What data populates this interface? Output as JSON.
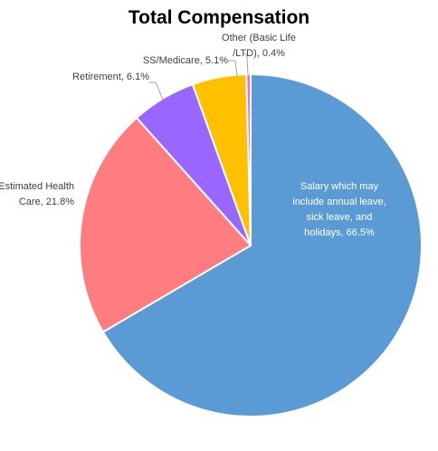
{
  "chart_data": {
    "type": "pie",
    "title": "Total Compensation",
    "slices": [
      {
        "label": "Salary which may include annual leave, sick leave, and holidays, 66.5%",
        "value": 66.5,
        "color": "#5B9BD5",
        "label_color": "#ffffff"
      },
      {
        "label": "Estimated Health Care, 21.8%",
        "value": 21.8,
        "color": "#FF7C80",
        "label_color": "#404040"
      },
      {
        "label": "Retirement, 6.1%",
        "value": 6.1,
        "color": "#9966FF",
        "label_color": "#404040"
      },
      {
        "label": "SS/Medicare, 5.1%",
        "value": 5.1,
        "color": "#FFC000",
        "label_color": "#404040"
      },
      {
        "label": "Other (Basic Life /LTD), 0.4%",
        "value": 0.4,
        "color": "#FF66CC",
        "label_color": "#404040"
      }
    ],
    "start": "12 o'clock",
    "direction": "clockwise",
    "legend": "none"
  }
}
